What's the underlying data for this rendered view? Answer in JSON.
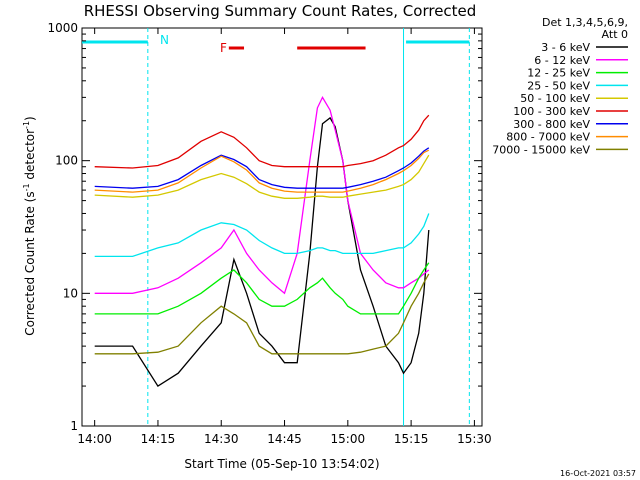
{
  "chart_data": {
    "type": "line",
    "title": "RHESSI Observing Summary Count Rates, Corrected",
    "xlabel": "Start Time (05-Sep-10 13:54:02)",
    "ylabel": "Corrected Count Rate (s⁻¹ detector⁻¹)",
    "ylabel_parts": {
      "main": "Corrected Count Rate (s",
      "sup1": "-1",
      "mid": " detector",
      "sup2": "-1",
      "end": ")"
    },
    "yscale": "log",
    "ylim": [
      1,
      1000
    ],
    "xlim_minutes": [
      13.95,
      15.53
    ],
    "x_ticks": [
      "14:00",
      "14:15",
      "14:30",
      "14:45",
      "15:00",
      "15:15",
      "15:30"
    ],
    "x_tick_values": [
      14.0,
      14.25,
      14.5,
      14.75,
      15.0,
      15.25,
      15.5
    ],
    "y_ticks": [
      "1",
      "10",
      "100",
      "1000"
    ],
    "y_tick_values": [
      1,
      10,
      100,
      1000
    ],
    "detector_note": "Det 1,3,4,5,6,9,",
    "attenuator_note": "Att 0",
    "timestamp": "16-Oct-2021 03:57",
    "flag_label": "N",
    "flag_F": "F",
    "night_bars": [
      {
        "x0": 13.95,
        "x1": 14.21,
        "color": "#00e5ee"
      },
      {
        "x0": 15.23,
        "x1": 15.48,
        "color": "#00e5ee"
      }
    ],
    "flare_bars": [
      {
        "x0": 14.53,
        "x1": 14.59,
        "color": "#e00000"
      },
      {
        "x0": 14.8,
        "x1": 15.07,
        "color": "#e00000"
      }
    ],
    "dashed_lines": [
      14.21,
      15.48
    ],
    "solid_lines": [
      15.22
    ],
    "series": [
      {
        "name": "3 - 6 keV",
        "color": "#000000",
        "x": [
          14.0,
          14.15,
          14.25,
          14.33,
          14.42,
          14.5,
          14.55,
          14.6,
          14.65,
          14.7,
          14.75,
          14.8,
          14.85,
          14.88,
          14.9,
          14.93,
          14.95,
          14.98,
          15.0,
          15.05,
          15.1,
          15.15,
          15.2,
          15.22,
          15.25,
          15.28,
          15.3,
          15.32
        ],
        "y": [
          4,
          4,
          2,
          2.5,
          4,
          6,
          18,
          10,
          5,
          4,
          3,
          3,
          20,
          90,
          190,
          210,
          180,
          100,
          50,
          15,
          8,
          4,
          3,
          2.5,
          3,
          5,
          10,
          30
        ]
      },
      {
        "name": "6 - 12 keV",
        "color": "#ff00ff",
        "x": [
          14.0,
          14.15,
          14.25,
          14.33,
          14.42,
          14.5,
          14.55,
          14.6,
          14.65,
          14.7,
          14.75,
          14.8,
          14.85,
          14.88,
          14.9,
          14.93,
          14.95,
          14.98,
          15.0,
          15.05,
          15.1,
          15.15,
          15.2,
          15.22,
          15.25,
          15.28,
          15.3,
          15.32
        ],
        "y": [
          10,
          10,
          11,
          13,
          17,
          22,
          30,
          20,
          15,
          12,
          10,
          20,
          100,
          250,
          300,
          240,
          170,
          100,
          50,
          20,
          15,
          12,
          11,
          11,
          12,
          13,
          14,
          15
        ]
      },
      {
        "name": "12 - 25 keV",
        "color": "#00ee00",
        "x": [
          14.0,
          14.15,
          14.25,
          14.33,
          14.42,
          14.5,
          14.55,
          14.6,
          14.65,
          14.7,
          14.75,
          14.8,
          14.85,
          14.88,
          14.9,
          14.93,
          14.95,
          14.98,
          15.0,
          15.05,
          15.1,
          15.15,
          15.2,
          15.22,
          15.25,
          15.28,
          15.3,
          15.32
        ],
        "y": [
          7,
          7,
          7,
          8,
          10,
          13,
          15,
          12,
          9,
          8,
          8,
          9,
          11,
          12,
          13,
          11,
          10,
          9,
          8,
          7,
          7,
          7,
          7,
          8,
          10,
          13,
          15,
          17
        ]
      },
      {
        "name": "25 - 50 keV",
        "color": "#00e5ee",
        "x": [
          14.0,
          14.15,
          14.25,
          14.33,
          14.42,
          14.5,
          14.55,
          14.6,
          14.65,
          14.7,
          14.75,
          14.8,
          14.85,
          14.88,
          14.9,
          14.93,
          14.95,
          14.98,
          15.0,
          15.05,
          15.1,
          15.15,
          15.2,
          15.22,
          15.25,
          15.28,
          15.3,
          15.32
        ],
        "y": [
          19,
          19,
          22,
          24,
          30,
          34,
          33,
          30,
          25,
          22,
          20,
          20,
          21,
          22,
          22,
          21,
          21,
          20,
          20,
          20,
          20,
          21,
          22,
          22,
          24,
          28,
          32,
          40
        ]
      },
      {
        "name": "50 - 100 keV",
        "color": "#d4c800",
        "x": [
          14.0,
          14.15,
          14.25,
          14.33,
          14.42,
          14.5,
          14.55,
          14.6,
          14.65,
          14.7,
          14.75,
          14.8,
          14.85,
          14.88,
          14.9,
          14.93,
          14.95,
          14.98,
          15.0,
          15.05,
          15.1,
          15.15,
          15.2,
          15.22,
          15.25,
          15.28,
          15.3,
          15.32
        ],
        "y": [
          55,
          53,
          55,
          60,
          72,
          80,
          75,
          67,
          58,
          54,
          52,
          52,
          53,
          54,
          54,
          53,
          53,
          53,
          54,
          56,
          58,
          60,
          64,
          66,
          72,
          82,
          95,
          110
        ]
      },
      {
        "name": "100 - 300 keV",
        "color": "#e00000",
        "x": [
          14.0,
          14.15,
          14.25,
          14.33,
          14.42,
          14.5,
          14.55,
          14.6,
          14.65,
          14.7,
          14.75,
          14.8,
          14.85,
          14.88,
          14.9,
          14.93,
          14.95,
          14.98,
          15.0,
          15.05,
          15.1,
          15.15,
          15.2,
          15.22,
          15.25,
          15.28,
          15.3,
          15.32
        ],
        "y": [
          90,
          88,
          92,
          105,
          140,
          165,
          150,
          125,
          100,
          92,
          90,
          90,
          90,
          90,
          90,
          90,
          90,
          90,
          92,
          95,
          100,
          110,
          125,
          130,
          145,
          170,
          200,
          220
        ]
      },
      {
        "name": "300 - 800 keV",
        "color": "#0000ee",
        "x": [
          14.0,
          14.15,
          14.25,
          14.33,
          14.42,
          14.5,
          14.55,
          14.6,
          14.65,
          14.7,
          14.75,
          14.8,
          14.85,
          14.88,
          14.9,
          14.93,
          14.95,
          14.98,
          15.0,
          15.05,
          15.1,
          15.15,
          15.2,
          15.22,
          15.25,
          15.28,
          15.3,
          15.32
        ],
        "y": [
          64,
          62,
          64,
          72,
          92,
          110,
          102,
          90,
          72,
          66,
          63,
          62,
          62,
          62,
          62,
          62,
          62,
          62,
          63,
          66,
          70,
          75,
          84,
          88,
          96,
          108,
          118,
          125
        ]
      },
      {
        "name": "800 - 7000 keV",
        "color": "#ff8c00",
        "x": [
          14.0,
          14.15,
          14.25,
          14.33,
          14.42,
          14.5,
          14.55,
          14.6,
          14.65,
          14.7,
          14.75,
          14.8,
          14.85,
          14.88,
          14.9,
          14.93,
          14.95,
          14.98,
          15.0,
          15.05,
          15.1,
          15.15,
          15.2,
          15.22,
          15.25,
          15.28,
          15.3,
          15.32
        ],
        "y": [
          60,
          58,
          60,
          68,
          88,
          108,
          98,
          85,
          68,
          62,
          59,
          58,
          58,
          58,
          58,
          58,
          58,
          58,
          59,
          62,
          66,
          72,
          80,
          84,
          92,
          104,
          115,
          120
        ]
      },
      {
        "name": "7000 - 15000 keV",
        "color": "#808000",
        "x": [
          14.0,
          14.15,
          14.25,
          14.33,
          14.42,
          14.5,
          14.55,
          14.6,
          14.65,
          14.7,
          14.75,
          14.8,
          14.85,
          14.88,
          14.9,
          14.93,
          14.95,
          14.98,
          15.0,
          15.05,
          15.1,
          15.15,
          15.2,
          15.22,
          15.25,
          15.28,
          15.3,
          15.32
        ],
        "y": [
          3.5,
          3.5,
          3.6,
          4,
          6,
          8,
          7,
          6,
          4,
          3.5,
          3.5,
          3.5,
          3.5,
          3.5,
          3.5,
          3.5,
          3.5,
          3.5,
          3.5,
          3.6,
          3.8,
          4,
          5,
          6,
          8,
          10,
          12,
          14
        ]
      }
    ]
  }
}
